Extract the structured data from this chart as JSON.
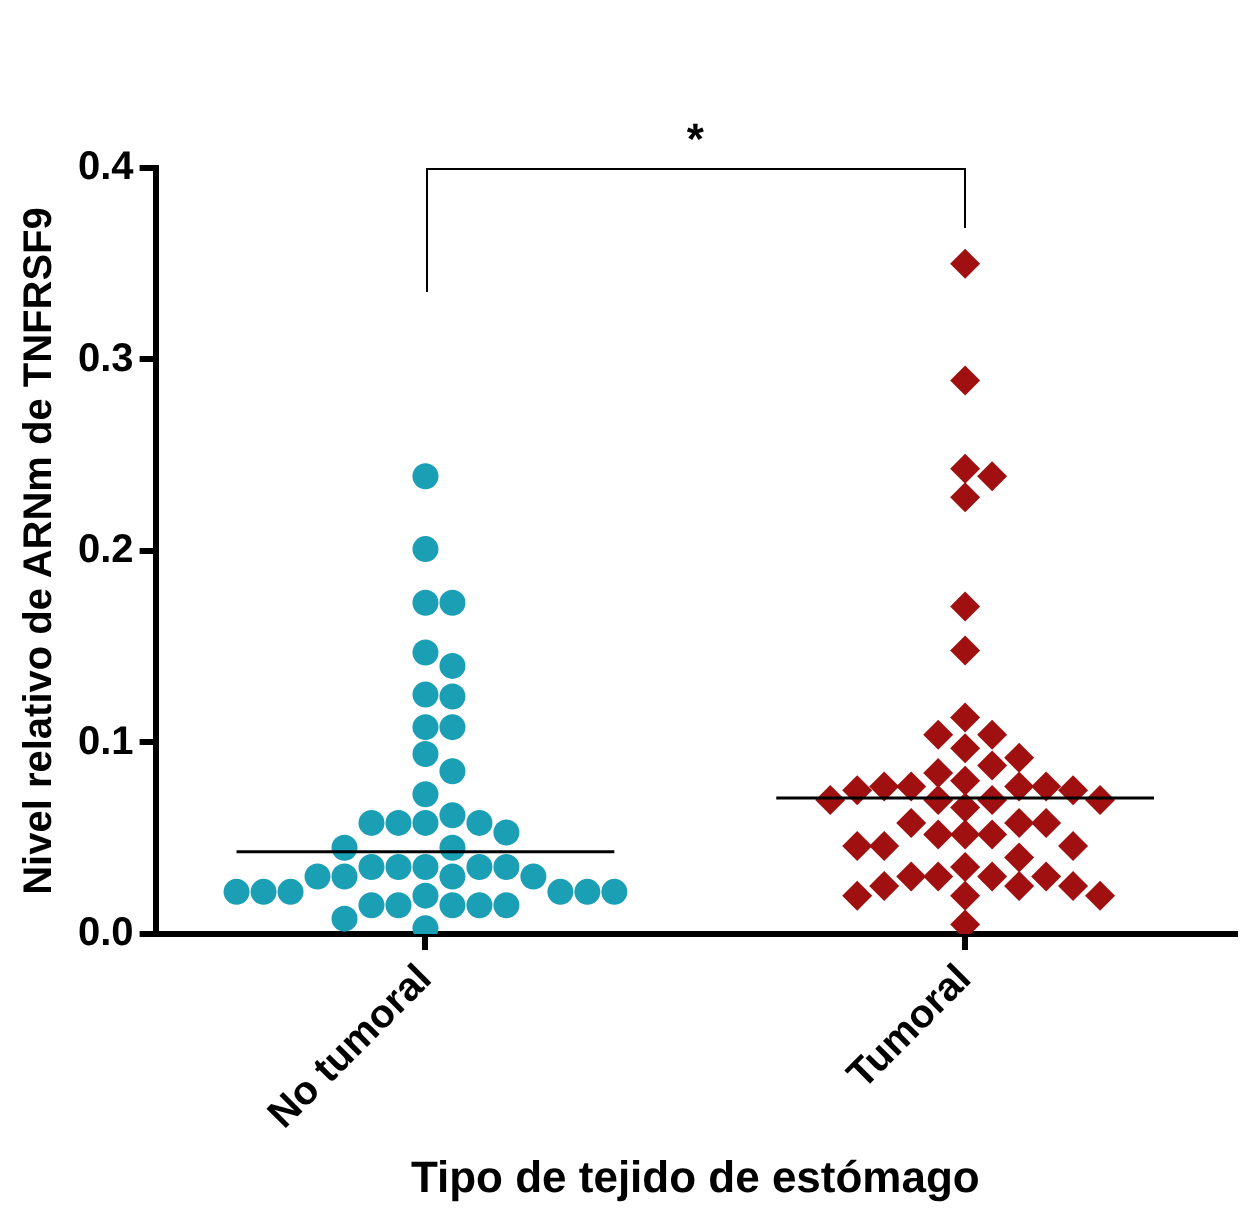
{
  "chart_data": {
    "type": "scatter",
    "xlabel": "Tipo de tejido de estómago",
    "ylabel": "Nivel relativo de ARNm de TNFRSF9",
    "categories": [
      "No tumoral",
      "Tumoral"
    ],
    "ylim": [
      0,
      0.4
    ],
    "yticks": [
      {
        "value": 0,
        "label": "0.0"
      },
      {
        "value": 0.1,
        "label": "0.1"
      },
      {
        "value": 0.2,
        "label": "0.2"
      },
      {
        "value": 0.3,
        "label": "0.3"
      },
      {
        "value": 0.4,
        "label": "0.4"
      }
    ],
    "grid": false,
    "series": [
      {
        "marker": "circle",
        "color": "#1a9fb5",
        "x": [
          "No tumoral",
          "No tumoral",
          "No tumoral",
          "No tumoral",
          "No tumoral",
          "No tumoral",
          "No tumoral",
          "No tumoral",
          "No tumoral",
          "No tumoral",
          "No tumoral",
          "No tumoral",
          "No tumoral",
          "No tumoral",
          "No tumoral",
          "No tumoral",
          "No tumoral",
          "No tumoral",
          "No tumoral",
          "No tumoral",
          "No tumoral",
          "No tumoral",
          "No tumoral",
          "No tumoral",
          "No tumoral",
          "No tumoral",
          "No tumoral",
          "No tumoral",
          "No tumoral",
          "No tumoral",
          "No tumoral",
          "No tumoral",
          "No tumoral",
          "No tumoral",
          "No tumoral",
          "No tumoral",
          "No tumoral",
          "No tumoral",
          "No tumoral",
          "No tumoral",
          "No tumoral",
          "No tumoral",
          "No tumoral",
          "No tumoral"
        ],
        "values": [
          0.239,
          0.201,
          0.173,
          0.173,
          0.147,
          0.14,
          0.125,
          0.124,
          0.108,
          0.108,
          0.094,
          0.085,
          0.073,
          0.062,
          0.058,
          0.058,
          0.058,
          0.058,
          0.053,
          0.045,
          0.045,
          0.035,
          0.035,
          0.035,
          0.035,
          0.035,
          0.03,
          0.03,
          0.03,
          0.03,
          0.022,
          0.022,
          0.022,
          0.022,
          0.022,
          0.022,
          0.02,
          0.015,
          0.015,
          0.015,
          0.015,
          0.015,
          0.008,
          0.003
        ]
      },
      {
        "marker": "diamond",
        "color": "#a01010",
        "x": [
          "Tumoral",
          "Tumoral",
          "Tumoral",
          "Tumoral",
          "Tumoral",
          "Tumoral",
          "Tumoral",
          "Tumoral",
          "Tumoral",
          "Tumoral",
          "Tumoral",
          "Tumoral",
          "Tumoral",
          "Tumoral",
          "Tumoral",
          "Tumoral",
          "Tumoral",
          "Tumoral",
          "Tumoral",
          "Tumoral",
          "Tumoral",
          "Tumoral",
          "Tumoral",
          "Tumoral",
          "Tumoral",
          "Tumoral",
          "Tumoral",
          "Tumoral",
          "Tumoral",
          "Tumoral",
          "Tumoral",
          "Tumoral",
          "Tumoral",
          "Tumoral",
          "Tumoral",
          "Tumoral",
          "Tumoral",
          "Tumoral",
          "Tumoral",
          "Tumoral",
          "Tumoral",
          "Tumoral",
          "Tumoral",
          "Tumoral",
          "Tumoral",
          "Tumoral",
          "Tumoral",
          "Tumoral"
        ],
        "values": [
          0.35,
          0.289,
          0.243,
          0.239,
          0.228,
          0.171,
          0.148,
          0.113,
          0.104,
          0.104,
          0.097,
          0.092,
          0.088,
          0.084,
          0.08,
          0.077,
          0.077,
          0.077,
          0.077,
          0.075,
          0.075,
          0.07,
          0.07,
          0.07,
          0.07,
          0.066,
          0.058,
          0.058,
          0.058,
          0.052,
          0.052,
          0.052,
          0.046,
          0.046,
          0.046,
          0.04,
          0.035,
          0.03,
          0.03,
          0.03,
          0.03,
          0.025,
          0.025,
          0.025,
          0.02,
          0.02,
          0.02,
          0.005
        ]
      },
      {
        "type": "box",
        "color": "#000000",
        "boxes": [
          {
            "low": 0.043,
            "q1": 0.043,
            "median": 0.043,
            "q3": 0.043,
            "high": 0.043
          },
          {
            "low": 0.071,
            "q1": 0.071,
            "median": 0.071,
            "q3": 0.071,
            "high": 0.071
          }
        ]
      }
    ],
    "annotations": [
      "*"
    ]
  }
}
